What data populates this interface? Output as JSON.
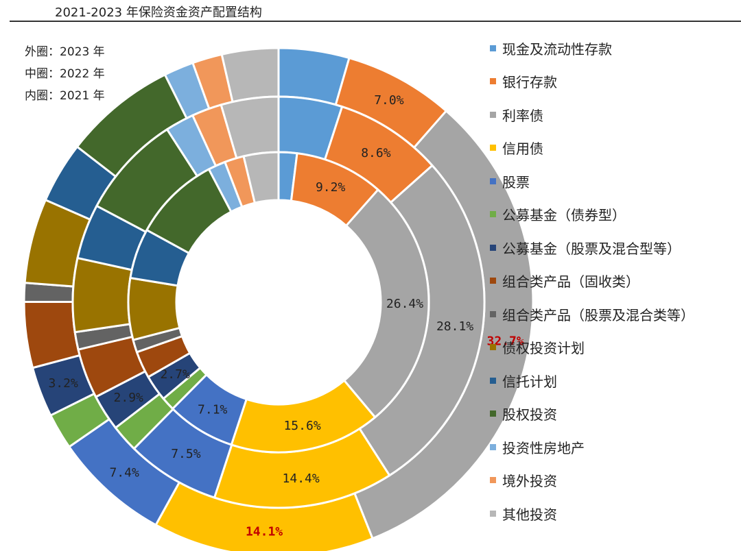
{
  "title": "2021-2023 年保险资金资产配置结构",
  "ring_notes": [
    "外圈：2023 年",
    "中圈：2022 年",
    "内圈：2021 年"
  ],
  "colors": [
    "#5b9bd5",
    "#ed7d31",
    "#a5a5a5",
    "#ffc000",
    "#4472c4",
    "#70ad47",
    "#264478",
    "#9e480e",
    "#636363",
    "#997300",
    "#255e91",
    "#43682b",
    "#7cafdd",
    "#f1975a",
    "#b7b7b7"
  ],
  "chart_data": {
    "type": "pie",
    "subtype": "nested-donut",
    "title": "2021-2023 年保险资金资产配置结构",
    "categories": [
      "现金及流动性存款",
      "银行存款",
      "利率债",
      "信用债",
      "股票",
      "公募基金（债券型）",
      "公募基金（股票及混合型等）",
      "组合类产品（固收类）",
      "组合类产品（股票及混合类等）",
      "债权投资计划",
      "信托计划",
      "股权投资",
      "投资性房地产",
      "境外投资",
      "其他投资"
    ],
    "series": [
      {
        "name": "外圈：2023 年",
        "values": [
          4.5,
          7.0,
          32.7,
          14.1,
          7.4,
          2.3,
          3.2,
          4.2,
          1.2,
          5.4,
          3.9,
          7.2,
          1.9,
          1.9,
          3.6
        ],
        "labels": [
          "",
          "7.0%",
          "32.7%",
          "14.1%",
          "7.4%",
          "",
          "3.2%",
          "",
          "",
          "",
          "",
          "",
          "",
          "",
          ""
        ]
      },
      {
        "name": "中圈：2022 年",
        "values": [
          5.1,
          8.6,
          28.1,
          14.4,
          7.5,
          2.2,
          2.9,
          4.0,
          1.4,
          5.9,
          4.4,
          8.3,
          2.3,
          2.4,
          4.6
        ],
        "labels": [
          "",
          "8.6%",
          "28.1%",
          "14.4%",
          "7.5%",
          "",
          "2.9%",
          "",
          "",
          "",
          "",
          "",
          "",
          "",
          ""
        ]
      },
      {
        "name": "内圈：2021 年",
        "values": [
          1.9,
          9.2,
          26.4,
          15.6,
          7.1,
          1.4,
          2.7,
          2.8,
          1.3,
          6.4,
          5.2,
          9.0,
          1.8,
          2.0,
          3.6
        ],
        "labels": [
          "",
          "9.2%",
          "26.4%",
          "15.6%",
          "7.1%",
          "",
          "2.7%",
          "",
          "",
          "",
          "",
          "",
          "",
          "",
          ""
        ]
      }
    ],
    "highlight_labels": [
      "32.7%",
      "14.1%"
    ],
    "highlight_color": "#c00000",
    "legend_position": "right"
  }
}
